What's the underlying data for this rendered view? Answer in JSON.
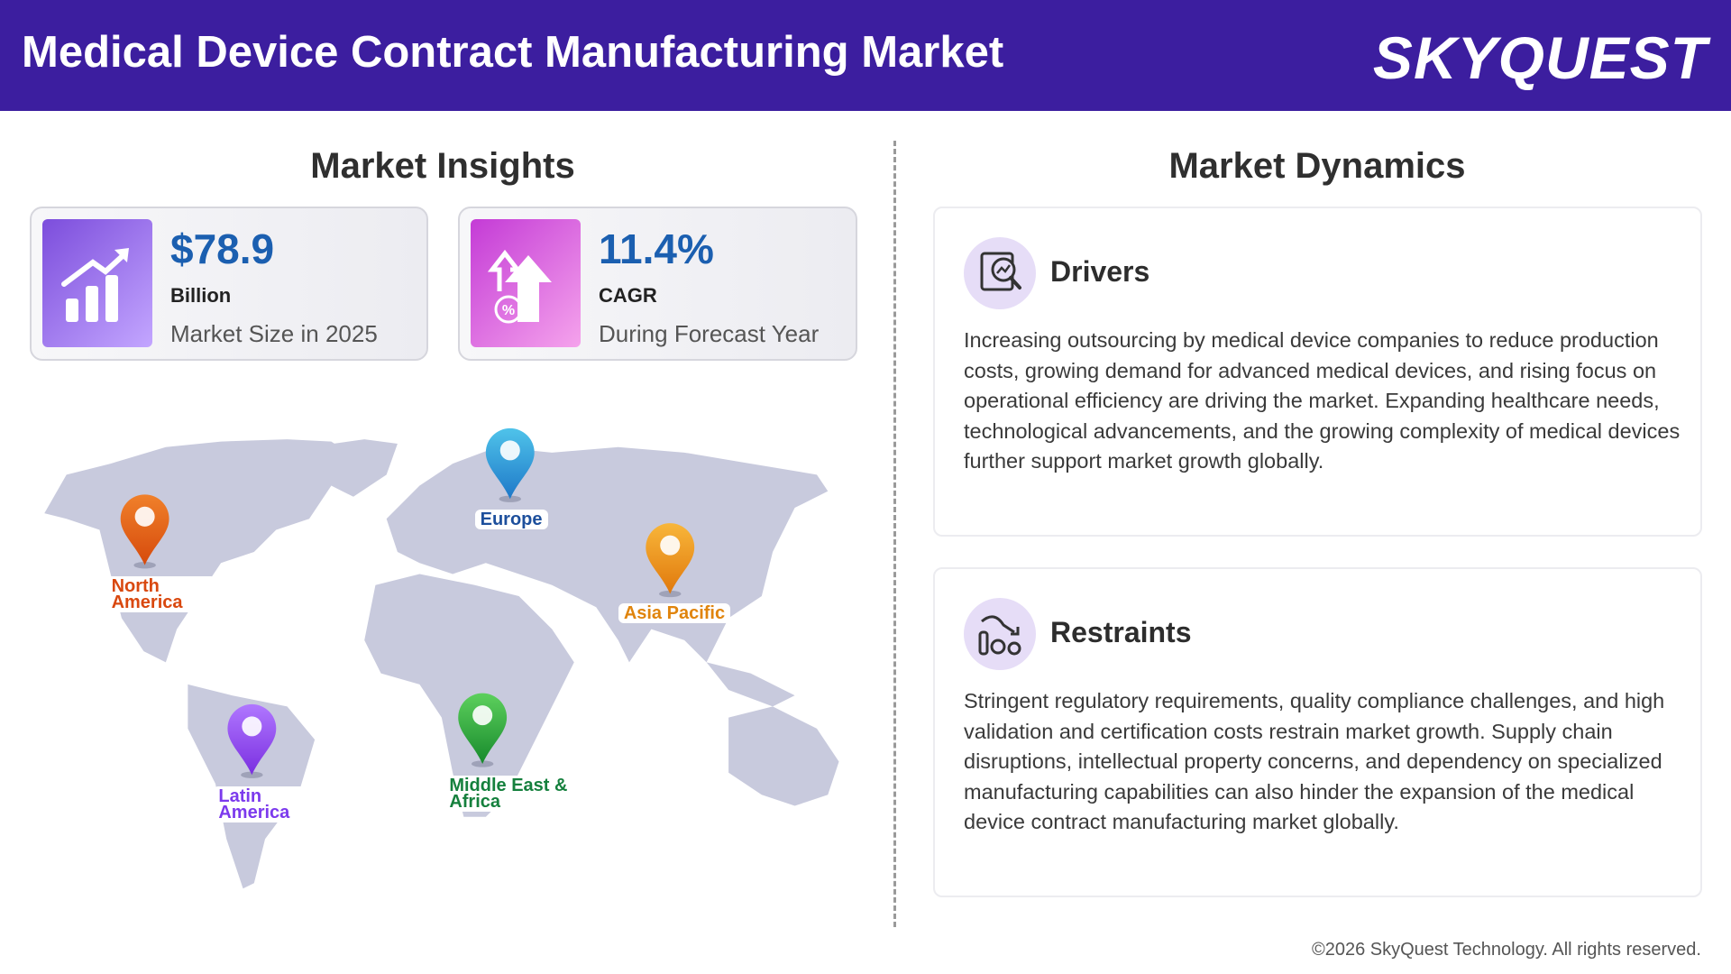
{
  "header": {
    "title": "Medical Device Contract Manufacturing Market",
    "logo": "SKYQUEST"
  },
  "insights": {
    "title": "Market Insights",
    "cards": [
      {
        "value": "$78.9",
        "unit": "Billion",
        "label": "Market Size in 2025"
      },
      {
        "value": "11.4%",
        "unit": "CAGR",
        "label": "During Forecast Year"
      }
    ]
  },
  "map": {
    "regions": [
      {
        "label": "North America"
      },
      {
        "label": "Europe"
      },
      {
        "label": "Asia Pacific"
      },
      {
        "label": "Latin America"
      },
      {
        "label": "Middle East & Africa"
      }
    ]
  },
  "dynamics": {
    "title": "Market Dynamics",
    "sections": [
      {
        "title": "Drivers",
        "text": "Increasing outsourcing by medical device companies to reduce production costs, growing demand for advanced medical devices, and rising focus on operational efficiency are driving the market. Expanding healthcare needs, technological advancements, and the growing complexity of medical devices further support market growth globally."
      },
      {
        "title": "Restraints",
        "text": "Stringent regulatory requirements, quality compliance challenges, and high validation and certification costs restrain market growth. Supply chain disruptions, intellectual property concerns, and dependency on specialized manufacturing capabilities can also hinder the expansion of the medical device contract manufacturing market globally."
      }
    ]
  },
  "footer": {
    "copyright": "©2026 SkyQuest Technology. All rights reserved."
  }
}
